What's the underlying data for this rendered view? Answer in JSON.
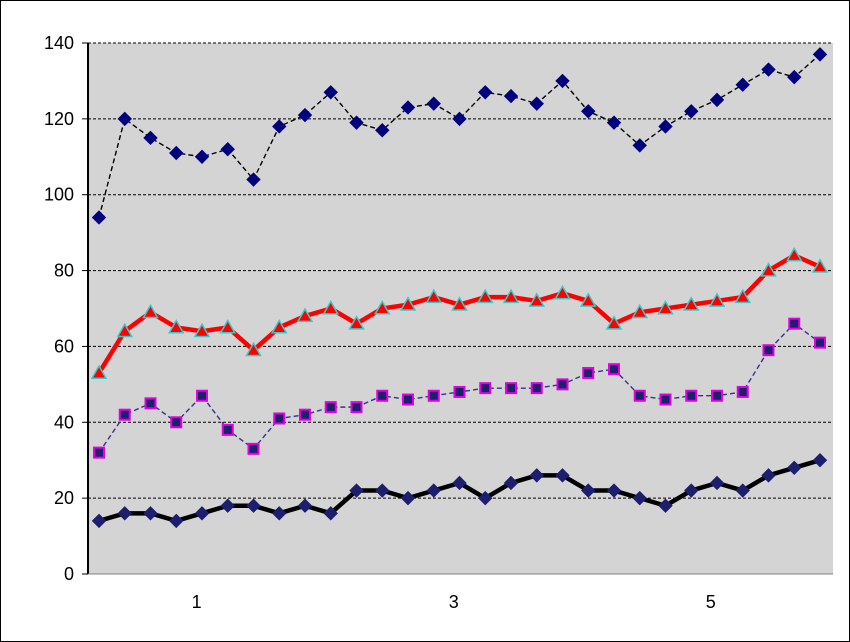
{
  "chart_data": {
    "type": "line",
    "title": "",
    "xlabel": "",
    "ylabel": "",
    "ylim": [
      0,
      140
    ],
    "xlim": [
      0.2,
      5
    ],
    "y_ticks": [
      0,
      20,
      40,
      60,
      80,
      100,
      120,
      140
    ],
    "x_tick_labels": [
      {
        "value": 1,
        "label": "1"
      },
      {
        "value": 3,
        "label": "3"
      },
      {
        "value": 5,
        "label": "5"
      }
    ],
    "grid": "horizontal dashed, black",
    "plot_background": "#d4d4d4",
    "x": [
      0.24,
      0.45,
      0.65,
      0.85,
      1.05,
      1.25,
      1.45,
      1.65,
      1.85,
      2.05,
      2.25,
      2.45,
      2.65,
      2.85,
      3.05,
      3.25,
      3.45,
      3.65,
      3.85,
      4.05,
      4.25,
      4.45,
      4.65,
      4.85,
      5.05,
      5.25,
      5.45,
      5.65,
      5.85
    ],
    "series": [
      {
        "style": "dashed black line, navy diamond markers",
        "line_color": "#000000",
        "marker_color": "#00007f",
        "marker": "diamond",
        "values": [
          94,
          120,
          115,
          111,
          110,
          112,
          104,
          118,
          121,
          127,
          119,
          117,
          123,
          124,
          120,
          127,
          126,
          124,
          130,
          122,
          119,
          113,
          118,
          122,
          125,
          129,
          133,
          131,
          137
        ]
      },
      {
        "style": "thick red line, red triangle markers with cyan outline",
        "line_color": "#ff0000",
        "marker_color": "#ff0000",
        "marker_stroke": "#33cccc",
        "marker": "triangle",
        "values": [
          53,
          64,
          69,
          65,
          64,
          65,
          59,
          65,
          68,
          70,
          66,
          70,
          71,
          73,
          71,
          73,
          73,
          72,
          74,
          72,
          66,
          69,
          70,
          71,
          72,
          73,
          80,
          84,
          81
        ]
      },
      {
        "style": "dashed dark blue line, navy square markers with magenta outline",
        "line_color": "#33338f",
        "marker_color": "#1e1e6e",
        "marker_stroke": "#e000e0",
        "marker": "square",
        "values": [
          32,
          42,
          45,
          40,
          47,
          38,
          33,
          41,
          42,
          44,
          44,
          47,
          46,
          47,
          48,
          49,
          49,
          49,
          50,
          53,
          54,
          47,
          46,
          47,
          47,
          48,
          59,
          66,
          61
        ]
      },
      {
        "style": "thick black line, navy diamond markers",
        "line_color": "#000000",
        "marker_color": "#1e1e6e",
        "marker": "diamond",
        "values": [
          14,
          16,
          16,
          14,
          16,
          18,
          18,
          16,
          18,
          16,
          22,
          22,
          20,
          22,
          24,
          20,
          24,
          26,
          26,
          22,
          22,
          20,
          18,
          22,
          24,
          22,
          26,
          28,
          30
        ]
      }
    ]
  }
}
